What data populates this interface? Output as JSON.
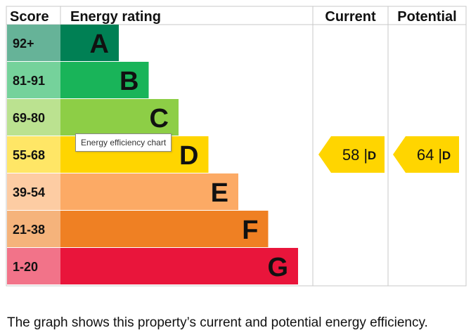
{
  "chart_data": {
    "type": "bar",
    "headers": {
      "score": "Score",
      "rating": "Energy rating",
      "current": "Current",
      "potential": "Potential"
    },
    "bands": [
      {
        "score": "92+",
        "letter": "A",
        "color": "#008054",
        "score_bg": "#66b398"
      },
      {
        "score": "81-91",
        "letter": "B",
        "color": "#19b459",
        "score_bg": "#75d29b"
      },
      {
        "score": "69-80",
        "letter": "C",
        "color": "#8dce46",
        "score_bg": "#bbe290"
      },
      {
        "score": "55-68",
        "letter": "D",
        "color": "#ffd500",
        "score_bg": "#ffe666"
      },
      {
        "score": "39-54",
        "letter": "E",
        "color": "#fcaa65",
        "score_bg": "#fdcca3"
      },
      {
        "score": "21-38",
        "letter": "F",
        "color": "#ef8023",
        "score_bg": "#f5b37b"
      },
      {
        "score": "1-20",
        "letter": "G",
        "color": "#e9153b",
        "score_bg": "#f27389"
      }
    ],
    "current": {
      "value": 58,
      "band": "D",
      "label": "58 |",
      "letter": "D"
    },
    "potential": {
      "value": 64,
      "band": "D",
      "label": "64 |",
      "letter": "D"
    }
  },
  "tooltip": "Energy efficiency chart",
  "caption": "The graph shows this property’s current and potential energy efficiency."
}
